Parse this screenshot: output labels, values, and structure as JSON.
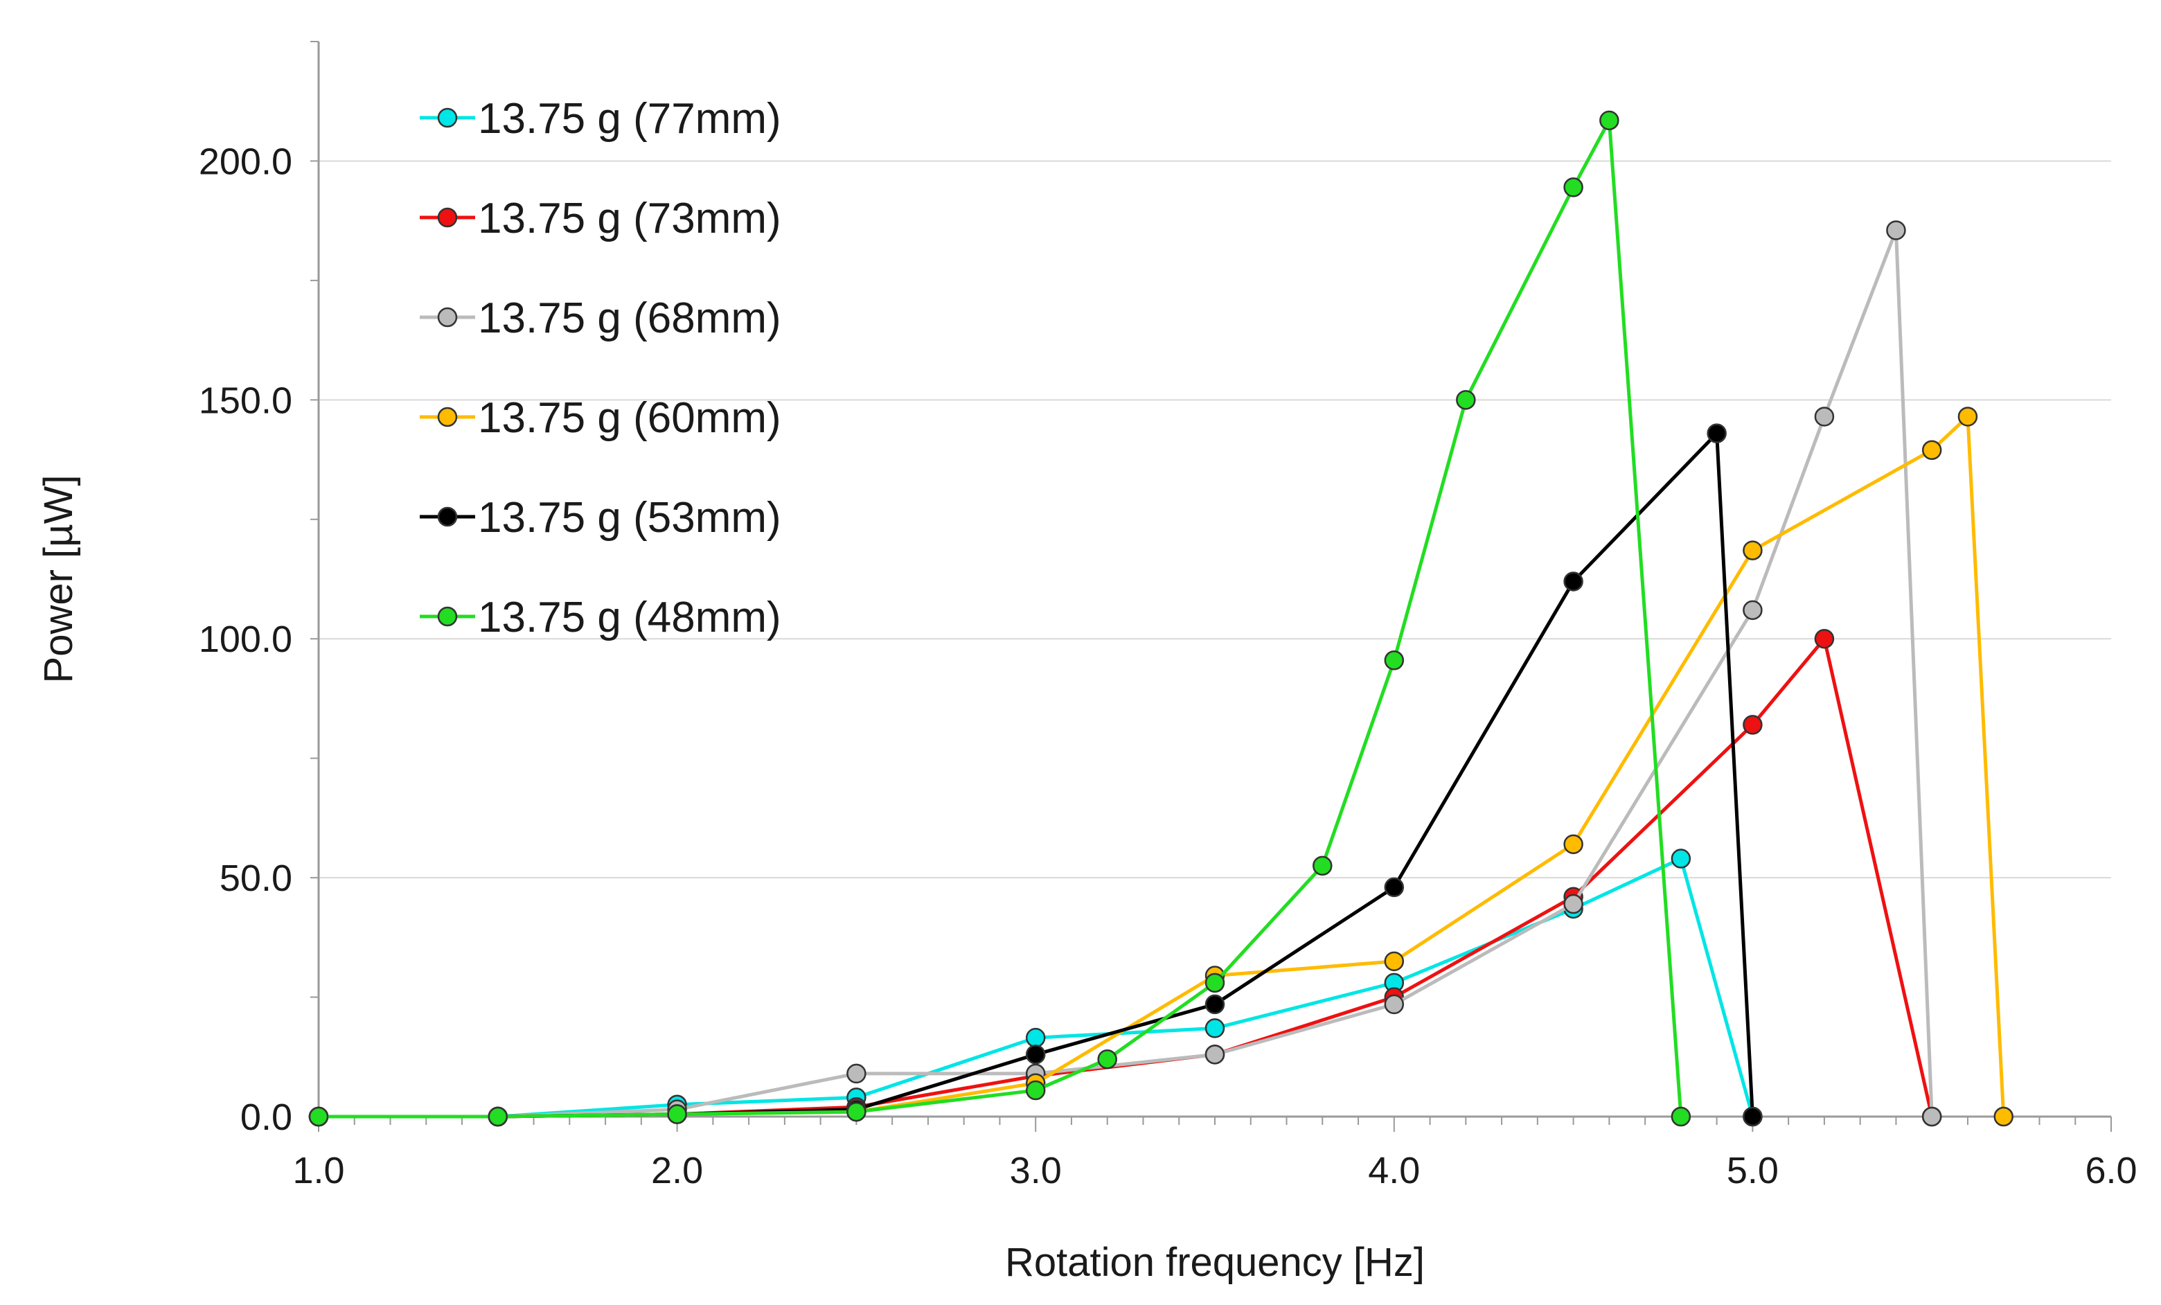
{
  "chart_data": {
    "type": "line",
    "xlabel": "Rotation frequency  [Hz]",
    "ylabel": "Power [µW]",
    "xlim": [
      1.0,
      6.0
    ],
    "ylim": [
      0,
      225
    ],
    "x_ticks": [
      "1.0",
      "2.0",
      "3.0",
      "4.0",
      "5.0",
      "6.0"
    ],
    "x_tick_values": [
      1,
      2,
      3,
      4,
      5,
      6
    ],
    "y_ticks": [
      "0.0",
      "50.0",
      "100.0",
      "150.0",
      "200.0"
    ],
    "y_tick_values": [
      0,
      50,
      100,
      150,
      200
    ],
    "grid": "horizontal",
    "legend_position": "top-left",
    "series": [
      {
        "name": "13.75 g (77mm)",
        "color": "#00e5e5",
        "x": [
          1.0,
          1.5,
          2.0,
          2.5,
          3.0,
          3.5,
          4.0,
          4.5,
          4.8,
          5.0
        ],
        "y": [
          0.0,
          0.0,
          2.5,
          4.0,
          16.5,
          18.5,
          28.0,
          43.5,
          54.0,
          0.0
        ]
      },
      {
        "name": "13.75 g (73mm)",
        "color": "#ee1111",
        "x": [
          1.0,
          1.5,
          2.0,
          2.5,
          3.0,
          3.5,
          4.0,
          4.5,
          5.0,
          5.2,
          5.5
        ],
        "y": [
          0.0,
          0.0,
          0.5,
          2.0,
          8.5,
          13.0,
          25.0,
          46.0,
          82.0,
          100.0,
          0.0
        ]
      },
      {
        "name": "13.75 g (68mm)",
        "color": "#bbbbbb",
        "x": [
          1.0,
          1.5,
          2.0,
          2.5,
          3.0,
          3.5,
          4.0,
          4.5,
          5.0,
          5.2,
          5.4,
          5.5
        ],
        "y": [
          0.0,
          0.0,
          1.5,
          9.0,
          9.0,
          13.0,
          23.5,
          44.5,
          106.0,
          146.5,
          185.5,
          0.0
        ]
      },
      {
        "name": "13.75 g (60mm)",
        "color": "#ffbb00",
        "x": [
          1.0,
          1.5,
          2.0,
          2.5,
          3.0,
          3.5,
          4.0,
          4.5,
          5.0,
          5.5,
          5.6,
          5.7
        ],
        "y": [
          0.0,
          0.0,
          0.5,
          1.0,
          7.0,
          29.5,
          32.5,
          57.0,
          118.5,
          139.5,
          146.5,
          0.0
        ]
      },
      {
        "name": "13.75 g (53mm)",
        "color": "#000000",
        "x": [
          1.0,
          1.5,
          2.0,
          2.5,
          3.0,
          3.5,
          4.0,
          4.5,
          4.9,
          5.0
        ],
        "y": [
          0.0,
          0.0,
          0.5,
          1.5,
          13.0,
          23.5,
          48.0,
          112.0,
          143.0,
          0.0
        ]
      },
      {
        "name": "13.75 g (48mm)",
        "color": "#22dd22",
        "x": [
          1.0,
          1.5,
          2.0,
          2.5,
          3.0,
          3.2,
          3.5,
          3.8,
          4.0,
          4.2,
          4.5,
          4.6,
          4.8
        ],
        "y": [
          0.0,
          0.0,
          0.5,
          1.0,
          5.5,
          12.0,
          28.0,
          52.5,
          95.5,
          150.0,
          194.5,
          208.5,
          0.0
        ]
      }
    ]
  }
}
